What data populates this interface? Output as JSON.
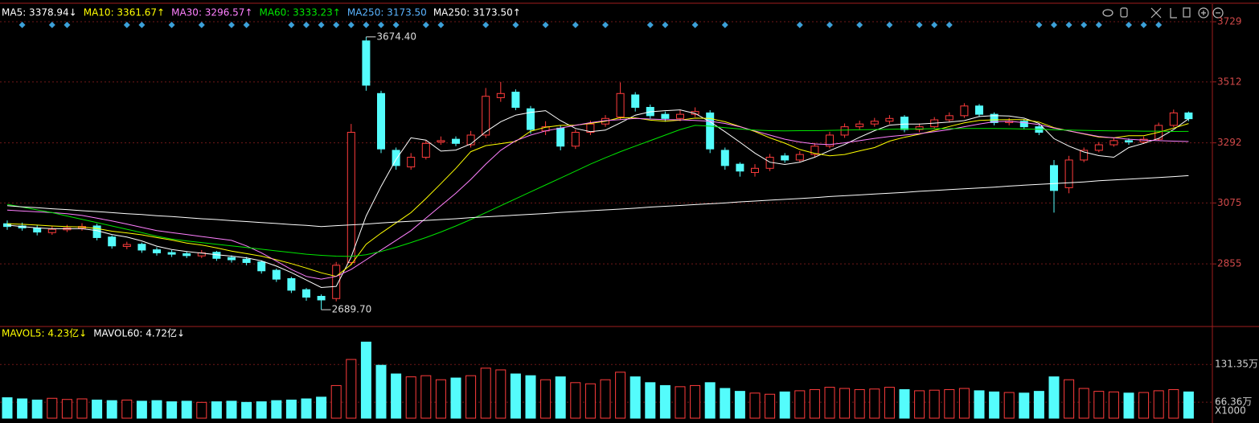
{
  "chart_data": {
    "type": "candlestick",
    "up_color": "#ff3c3c",
    "down_color": "#54fcfc",
    "grid": true,
    "ylim": [
      2632,
      3793
    ],
    "yticks": [
      3729,
      3512,
      3292,
      3075,
      2855
    ],
    "candles": {
      "open": [
        3000,
        2992,
        2985,
        2968,
        2978,
        2984,
        2992,
        2952,
        2918,
        2926,
        2906,
        2896,
        2892,
        2884,
        2897,
        2878,
        2872,
        2862,
        2832,
        2802,
        2762,
        2738,
        2730,
        2860,
        3660,
        3470,
        3265,
        3205,
        3240,
        3295,
        3305,
        3285,
        3320,
        3455,
        3475,
        3415,
        3335,
        3345,
        3280,
        3330,
        3360,
        3385,
        3465,
        3420,
        3395,
        3380,
        3395,
        3400,
        3265,
        3215,
        3185,
        3200,
        3245,
        3230,
        3250,
        3280,
        3320,
        3350,
        3360,
        3370,
        3385,
        3340,
        3350,
        3375,
        3390,
        3425,
        3395,
        3365,
        3370,
        3350,
        3210,
        3130,
        3230,
        3265,
        3285,
        3300,
        3295,
        3305,
        3355,
        3400
      ],
      "high": [
        3012,
        3004,
        2995,
        2992,
        2996,
        3002,
        3000,
        2958,
        2935,
        2932,
        2915,
        2905,
        2900,
        2905,
        2902,
        2886,
        2880,
        2868,
        2838,
        2808,
        2768,
        2745,
        2862,
        3360,
        3674.4,
        3480,
        3275,
        3255,
        3300,
        3315,
        3315,
        3335,
        3490,
        3512,
        3485,
        3425,
        3370,
        3355,
        3340,
        3372,
        3392,
        3510,
        3475,
        3430,
        3405,
        3410,
        3420,
        3410,
        3275,
        3222,
        3215,
        3252,
        3255,
        3262,
        3292,
        3332,
        3362,
        3372,
        3382,
        3392,
        3392,
        3362,
        3385,
        3402,
        3435,
        3432,
        3402,
        3382,
        3378,
        3358,
        3230,
        3245,
        3275,
        3295,
        3310,
        3308,
        3315,
        3365,
        3412,
        3405
      ],
      "low": [
        2978,
        2975,
        2958,
        2960,
        2970,
        2975,
        2940,
        2910,
        2908,
        2895,
        2885,
        2880,
        2876,
        2876,
        2866,
        2860,
        2850,
        2820,
        2790,
        2750,
        2722,
        2689.7,
        2720,
        2850,
        3480,
        3255,
        3195,
        3195,
        3232,
        3285,
        3280,
        3275,
        3310,
        3440,
        3410,
        3325,
        3320,
        3265,
        3270,
        3320,
        3350,
        3375,
        3405,
        3380,
        3368,
        3370,
        3385,
        3255,
        3195,
        3170,
        3170,
        3190,
        3220,
        3222,
        3240,
        3272,
        3310,
        3340,
        3350,
        3360,
        3330,
        3330,
        3342,
        3365,
        3382,
        3385,
        3355,
        3355,
        3340,
        3320,
        3040,
        3110,
        3222,
        3258,
        3278,
        3285,
        3288,
        3300,
        3348,
        3370
      ],
      "close": [
        2990,
        2985,
        2970,
        2980,
        2985,
        2990,
        2950,
        2920,
        2925,
        2905,
        2895,
        2890,
        2885,
        2895,
        2875,
        2870,
        2860,
        2830,
        2800,
        2760,
        2735,
        2725,
        2850,
        3330,
        3500,
        3270,
        3210,
        3240,
        3290,
        3300,
        3290,
        3320,
        3460,
        3470,
        3420,
        3340,
        3350,
        3280,
        3330,
        3360,
        3380,
        3470,
        3420,
        3390,
        3380,
        3395,
        3405,
        3270,
        3210,
        3190,
        3200,
        3240,
        3230,
        3250,
        3280,
        3320,
        3350,
        3360,
        3370,
        3380,
        3340,
        3350,
        3375,
        3390,
        3425,
        3395,
        3365,
        3370,
        3350,
        3330,
        3120,
        3230,
        3265,
        3285,
        3300,
        3295,
        3305,
        3355,
        3400,
        3379
      ]
    },
    "series": [
      {
        "name": "MA5: 3378.94↓",
        "color": "#ffffff",
        "values": [
          2995,
          2990,
          2985,
          2982,
          2982,
          2982,
          2975,
          2961,
          2952,
          2938,
          2919,
          2907,
          2900,
          2894,
          2888,
          2883,
          2877,
          2866,
          2847,
          2824,
          2797,
          2770,
          2774,
          2880,
          3028,
          3135,
          3232,
          3310,
          3302,
          3262,
          3266,
          3288,
          3332,
          3368,
          3392,
          3402,
          3408,
          3372,
          3344,
          3332,
          3338,
          3364,
          3392,
          3404,
          3408,
          3411,
          3398,
          3368,
          3332,
          3294,
          3255,
          3222,
          3214,
          3222,
          3240,
          3264,
          3286,
          3312,
          3336,
          3356,
          3360,
          3360,
          3363,
          3367,
          3372,
          3387,
          3390,
          3389,
          3381,
          3362,
          3307,
          3280,
          3259,
          3246,
          3240,
          3275,
          3290,
          3308,
          3340,
          3378.94
        ]
      },
      {
        "name": "MA10: 3361.67↑",
        "color": "#ffff00",
        "values": [
          3000,
          2998,
          2995,
          2992,
          2990,
          2988,
          2983,
          2973,
          2967,
          2960,
          2950,
          2941,
          2930,
          2923,
          2913,
          2901,
          2892,
          2883,
          2870,
          2856,
          2840,
          2823,
          2810,
          2853,
          2926,
          2966,
          3003,
          3040,
          3091,
          3145,
          3200,
          3260,
          3282,
          3289,
          3297,
          3334,
          3348,
          3355,
          3356,
          3362,
          3370,
          3383,
          3382,
          3374,
          3370,
          3374,
          3381,
          3380,
          3368,
          3351,
          3333,
          3310,
          3291,
          3268,
          3254,
          3245,
          3250,
          3263,
          3275,
          3298,
          3312,
          3323,
          3337,
          3351,
          3364,
          3373,
          3375,
          3376,
          3376,
          3367,
          3347,
          3335,
          3324,
          3313,
          3310,
          3318,
          3318,
          3330,
          3345,
          3361.67
        ]
      },
      {
        "name": "MA30: 3296.57↑",
        "color": "#ff80ff",
        "values": [
          3049,
          3046,
          3043,
          3040,
          3036,
          3030,
          3020,
          3010,
          2999,
          2987,
          2975,
          2968,
          2961,
          2954,
          2947,
          2940,
          2920,
          2895,
          2865,
          2835,
          2810,
          2800,
          2810,
          2835,
          2870,
          2905,
          2940,
          2975,
          3020,
          3065,
          3110,
          3160,
          3215,
          3265,
          3300,
          3320,
          3335,
          3345,
          3355,
          3365,
          3372,
          3376,
          3380,
          3378,
          3376,
          3375,
          3373,
          3370,
          3362,
          3350,
          3335,
          3320,
          3305,
          3295,
          3288,
          3286,
          3292,
          3300,
          3308,
          3315,
          3320,
          3325,
          3332,
          3340,
          3350,
          3360,
          3368,
          3370,
          3365,
          3358,
          3345,
          3335,
          3325,
          3315,
          3310,
          3305,
          3302,
          3300,
          3298,
          3296.57
        ]
      },
      {
        "name": "MA60: 3333.23↑",
        "color": "#00e600",
        "values": [
          3070,
          3060,
          3050,
          3040,
          3028,
          3016,
          3004,
          2992,
          2980,
          2968,
          2955,
          2945,
          2938,
          2932,
          2926,
          2920,
          2914,
          2908,
          2902,
          2896,
          2890,
          2886,
          2883,
          2882,
          2888,
          2900,
          2915,
          2932,
          2950,
          2970,
          2992,
          3015,
          3040,
          3065,
          3090,
          3115,
          3140,
          3165,
          3190,
          3215,
          3238,
          3260,
          3280,
          3300,
          3320,
          3340,
          3355,
          3352,
          3347,
          3342,
          3338,
          3336,
          3335,
          3336,
          3336,
          3337,
          3338,
          3339,
          3340,
          3341,
          3342,
          3342,
          3343,
          3343,
          3344,
          3344,
          3344,
          3343,
          3342,
          3341,
          3339,
          3338,
          3337,
          3336,
          3335,
          3335,
          3334,
          3334,
          3333,
          3333.23
        ]
      },
      {
        "name": "MA250: 3173.50",
        "color": "#5ab4ff",
        "values": []
      },
      {
        "name": "MA250: 3173.50↑",
        "color": "#ffffff",
        "values": [
          3065,
          3061,
          3058,
          3054,
          3051,
          3047,
          3044,
          3040,
          3036,
          3033,
          3029,
          3026,
          3022,
          3018,
          3015,
          3011,
          3008,
          3004,
          3001,
          2997,
          2994,
          2990,
          2993,
          2996,
          2999,
          3003,
          3006,
          3009,
          3012,
          3015,
          3018,
          3022,
          3025,
          3028,
          3031,
          3034,
          3037,
          3041,
          3044,
          3047,
          3050,
          3053,
          3056,
          3060,
          3063,
          3066,
          3069,
          3072,
          3075,
          3079,
          3082,
          3085,
          3088,
          3091,
          3094,
          3098,
          3101,
          3104,
          3107,
          3110,
          3113,
          3117,
          3120,
          3123,
          3126,
          3129,
          3132,
          3136,
          3139,
          3142,
          3145,
          3148,
          3151,
          3155,
          3158,
          3161,
          3164,
          3167,
          3170,
          3173.5
        ]
      }
    ],
    "annotations": [
      {
        "index": 24,
        "label": "3674.40"
      },
      {
        "index": 21,
        "label": "2689.70"
      }
    ],
    "signals": [
      1,
      3,
      4,
      8,
      9,
      11,
      13,
      15,
      16,
      19,
      20,
      21,
      22,
      23,
      24,
      25,
      26,
      28,
      29,
      32,
      34,
      36,
      38,
      40,
      43,
      44,
      46,
      48,
      53,
      55,
      57,
      59,
      61,
      62,
      63,
      69,
      70,
      71,
      72,
      73,
      75,
      76,
      77
    ],
    "signal_color": "#3ca0d8",
    "volume": {
      "values": [
        74,
        72,
        70,
        73,
        71,
        72,
        70,
        69,
        70,
        68,
        69,
        67,
        68,
        66,
        67,
        68,
        66,
        67,
        69,
        70,
        72,
        75,
        95,
        140,
        170,
        130,
        115,
        110,
        112,
        105,
        108,
        112,
        125,
        122,
        115,
        112,
        105,
        110,
        100,
        98,
        105,
        118,
        110,
        100,
        95,
        93,
        95,
        100,
        90,
        85,
        82,
        80,
        84,
        86,
        88,
        92,
        90,
        88,
        89,
        92,
        88,
        86,
        87,
        88,
        90,
        86,
        84,
        83,
        82,
        85,
        110,
        105,
        90,
        85,
        84,
        82,
        83,
        86,
        88,
        84
      ],
      "ylim": [
        38.7,
        170.5
      ],
      "yticks": [
        {
          "value": 131.35,
          "label": "131.35万"
        },
        {
          "value": 66.36,
          "label": "66.36万"
        }
      ],
      "unit_label": "X1000",
      "legend": [
        {
          "text": "MAVOL5: 4.23亿↓",
          "color": "#ffff00"
        },
        {
          "text": "MAVOL60: 4.72亿↓",
          "color": "#ffffff"
        }
      ]
    }
  }
}
